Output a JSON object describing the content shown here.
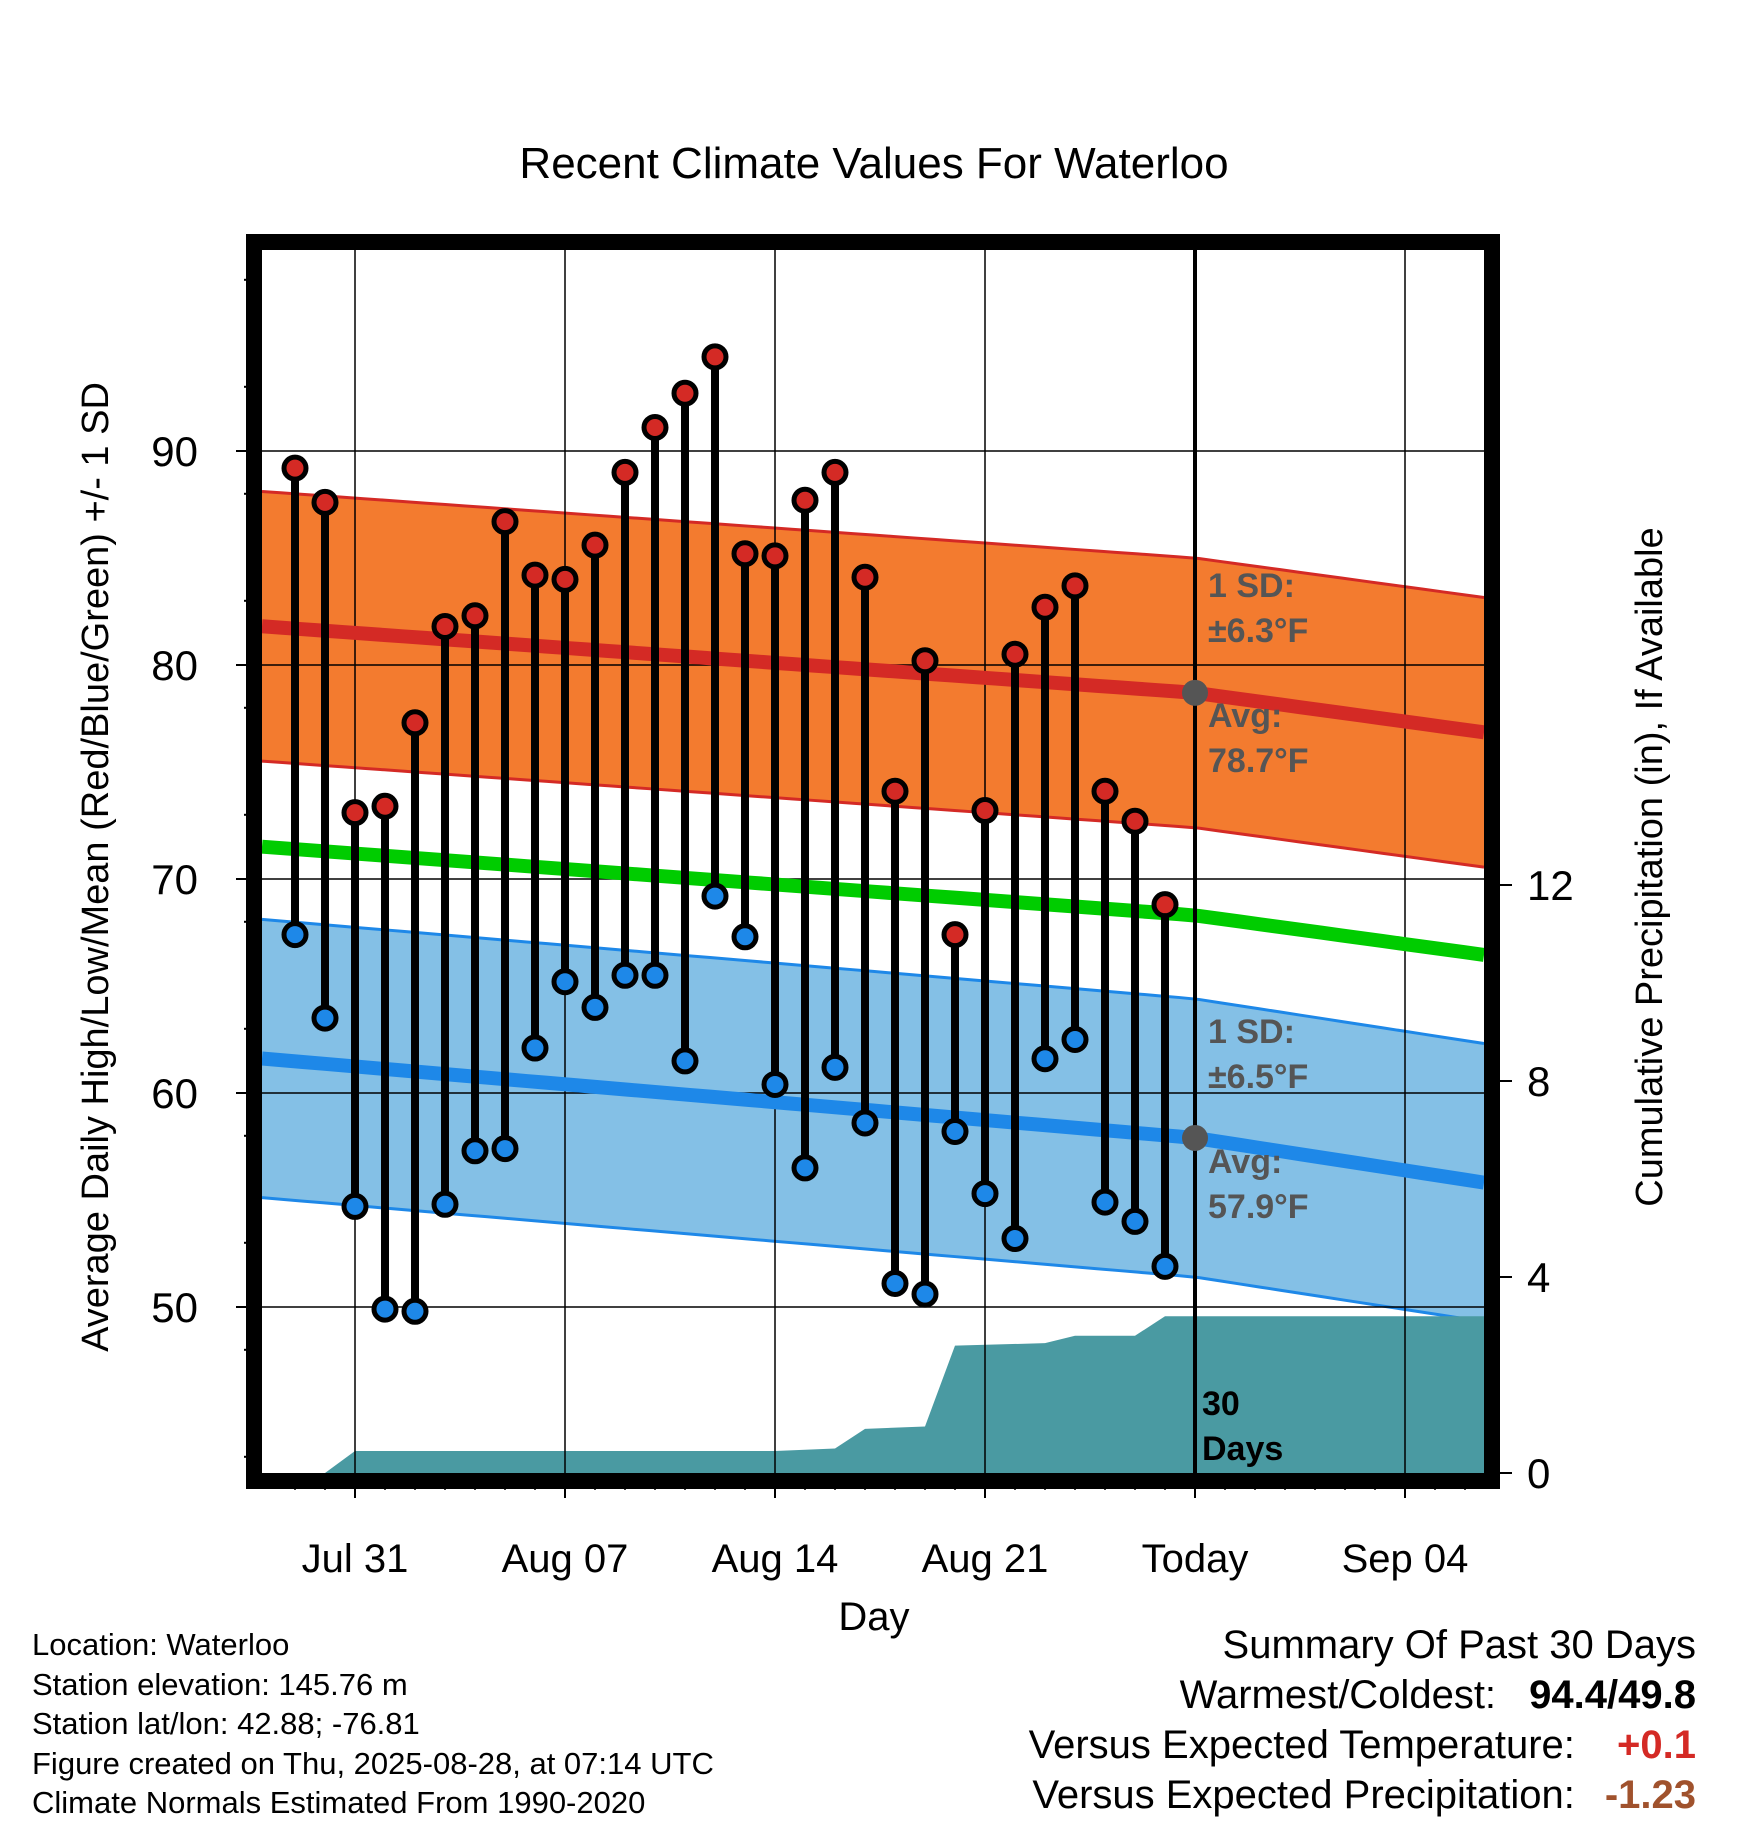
{
  "chart_data": {
    "type": "line",
    "title": "Recent Climate Values For Waterloo",
    "xlabel": "Day",
    "ylabel": "Average Daily High/Low/Mean (Red/Blue/Green) +/- 1 SD",
    "y2label": "Cumulative Precipitation (in), If Available",
    "ylim": [
      40,
      99
    ],
    "y2lim": [
      0,
      24
    ],
    "yticks": [
      "50",
      "60",
      "70",
      "80",
      "90"
    ],
    "y2ticks": [
      "0",
      "4",
      "8",
      "12"
    ],
    "x_tick_labels": [
      "Jul 31",
      "Aug 07",
      "Aug 14",
      "Aug 21",
      "Today",
      "Sep 04"
    ],
    "x_dates": [
      "2025-07-29",
      "2025-07-30",
      "2025-07-31",
      "2025-08-01",
      "2025-08-02",
      "2025-08-03",
      "2025-08-04",
      "2025-08-05",
      "2025-08-06",
      "2025-08-07",
      "2025-08-08",
      "2025-08-09",
      "2025-08-10",
      "2025-08-11",
      "2025-08-12",
      "2025-08-13",
      "2025-08-14",
      "2025-08-15",
      "2025-08-16",
      "2025-08-17",
      "2025-08-18",
      "2025-08-19",
      "2025-08-20",
      "2025-08-21",
      "2025-08-22",
      "2025-08-23",
      "2025-08-24",
      "2025-08-25",
      "2025-08-26",
      "2025-08-27"
    ],
    "highs": [
      89.2,
      87.6,
      73.1,
      73.4,
      77.3,
      81.8,
      82.3,
      86.7,
      84.2,
      84.0,
      85.6,
      89.0,
      91.1,
      92.7,
      94.4,
      85.2,
      85.1,
      87.7,
      89.0,
      84.1,
      74.1,
      80.2,
      67.4,
      73.2,
      80.5,
      82.7,
      83.7,
      74.1,
      72.7,
      68.8
    ],
    "lows": [
      67.4,
      63.5,
      54.7,
      49.9,
      49.8,
      54.8,
      57.3,
      57.4,
      62.1,
      65.2,
      64.0,
      65.5,
      65.5,
      61.5,
      69.2,
      67.3,
      60.4,
      56.5,
      61.2,
      58.6,
      51.1,
      50.6,
      58.2,
      55.3,
      53.2,
      61.6,
      62.5,
      54.9,
      54.0,
      51.9
    ],
    "series": [
      {
        "name": "Avg High",
        "color": "#d42a25",
        "x": [
          "2025-07-28",
          "2025-08-28",
          "2025-09-09"
        ],
        "values": [
          81.8,
          78.7,
          76.4
        ],
        "sd": 6.3
      },
      {
        "name": "Avg Mean",
        "color": "#00cc00",
        "x": [
          "2025-07-28",
          "2025-08-28",
          "2025-09-09"
        ],
        "values": [
          71.5,
          68.3,
          66.0
        ]
      },
      {
        "name": "Avg Low",
        "color": "#1e88e8",
        "x": [
          "2025-07-28",
          "2025-08-28",
          "2025-09-09"
        ],
        "values": [
          61.6,
          57.9,
          55.3
        ],
        "sd": 6.5
      },
      {
        "name": "Cumulative Precipitation",
        "color": "#4a9aa2",
        "x": [
          "2025-07-30",
          "2025-07-31",
          "2025-08-14",
          "2025-08-16",
          "2025-08-17",
          "2025-08-19",
          "2025-08-20",
          "2025-08-23",
          "2025-08-24",
          "2025-08-26",
          "2025-08-27",
          "2025-09-09"
        ],
        "values": [
          0.0,
          0.45,
          0.45,
          0.5,
          0.9,
          0.95,
          2.6,
          2.65,
          2.8,
          2.8,
          3.2,
          3.2
        ]
      }
    ],
    "annotations": {
      "high_sd_label": "1 SD:",
      "high_sd_value": "±6.3°F",
      "high_avg_label": "Avg:",
      "high_avg_value": "78.7°F",
      "low_sd_label": "1 SD:",
      "low_sd_value": "±6.5°F",
      "low_avg_label": "Avg:",
      "low_avg_value": "57.9°F",
      "precip_label_1": "30",
      "precip_label_2": "Days"
    },
    "grid": true,
    "colors": {
      "high_band": "#f37b2f",
      "low_band": "#84c0e6",
      "high_marker": "#d42a25",
      "low_marker": "#1e88e8",
      "precip": "#4a9aa2",
      "avg_marker": "#555555"
    }
  },
  "footer": {
    "location": "Location: Waterloo",
    "elevation": "Station elevation: 145.76 m",
    "latlon": "Station lat/lon: 42.88; -76.81",
    "created": "Figure created on Thu, 2025-08-28, at 07:14 UTC",
    "normals": "Climate Normals Estimated From 1990-2020"
  },
  "summary": {
    "title": "Summary Of Past 30 Days",
    "warm_cold_label": "Warmest/Coldest:",
    "warm_cold_value": "94.4/49.8",
    "temp_label": "Versus Expected Temperature:",
    "temp_value": "+0.1",
    "temp_color": "#d42a25",
    "precip_label": "Versus Expected Precipitation:",
    "precip_value": "-1.23",
    "precip_color": "#a0522d"
  }
}
